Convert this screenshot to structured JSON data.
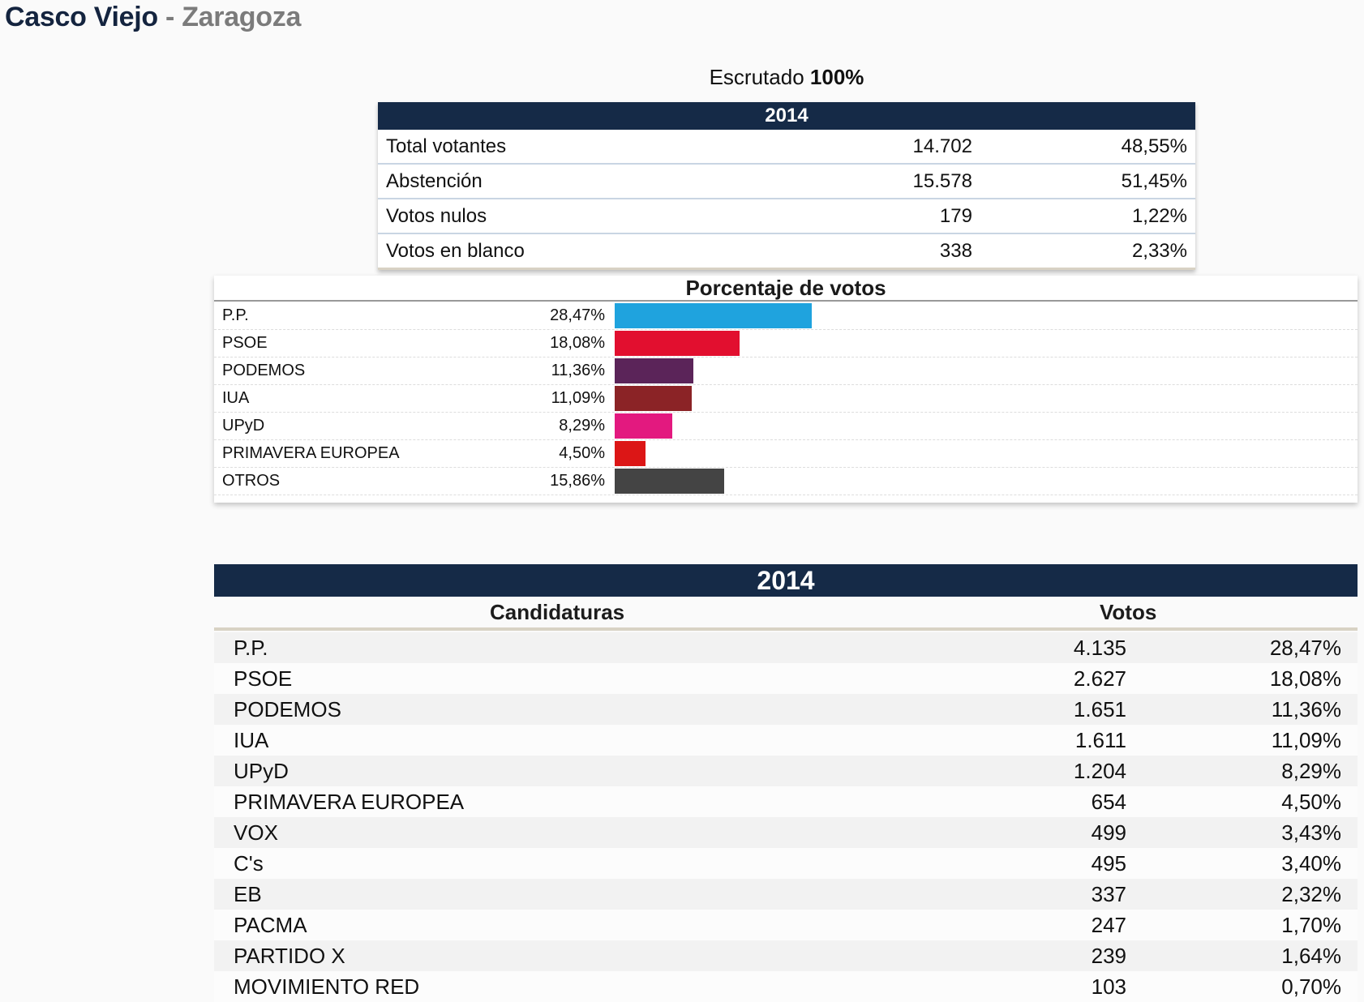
{
  "header": {
    "place": "Casco Viejo",
    "separator": "-",
    "city": "Zaragoza"
  },
  "scrutiny": {
    "label": "Escrutado",
    "value": "100%"
  },
  "summary": {
    "year": "2014",
    "rows": [
      {
        "label": "Total votantes",
        "value": "14.702",
        "pct": "48,55%"
      },
      {
        "label": "Abstención",
        "value": "15.578",
        "pct": "51,45%"
      },
      {
        "label": "Votos nulos",
        "value": "179",
        "pct": "1,22%"
      },
      {
        "label": "Votos en blanco",
        "value": "338",
        "pct": "2,33%"
      }
    ]
  },
  "chart_data": {
    "type": "bar",
    "orientation": "horizontal",
    "title": "Porcentaje de votos",
    "categories": [
      "P.P.",
      "PSOE",
      "PODEMOS",
      "IUA",
      "UPyD",
      "PRIMAVERA EUROPEA",
      "OTROS"
    ],
    "values": [
      28.47,
      18.08,
      11.36,
      11.09,
      8.29,
      4.5,
      15.86
    ],
    "labels": [
      "28,47%",
      "18,08%",
      "11,36%",
      "11,09%",
      "8,29%",
      "4,50%",
      "15,86%"
    ],
    "colors": [
      "#1fa3de",
      "#e20f2f",
      "#5b2459",
      "#8b2326",
      "#e3197f",
      "#dc1616",
      "#444444"
    ],
    "xlabel": "",
    "ylabel": "",
    "grid": false
  },
  "results": {
    "year": "2014",
    "col_candidates": "Candidaturas",
    "col_votes": "Votos",
    "rows": [
      {
        "name": "P.P.",
        "votes": "4.135",
        "pct": "28,47%"
      },
      {
        "name": "PSOE",
        "votes": "2.627",
        "pct": "18,08%"
      },
      {
        "name": "PODEMOS",
        "votes": "1.651",
        "pct": "11,36%"
      },
      {
        "name": "IUA",
        "votes": "1.611",
        "pct": "11,09%"
      },
      {
        "name": "UPyD",
        "votes": "1.204",
        "pct": "8,29%"
      },
      {
        "name": "PRIMAVERA EUROPEA",
        "votes": "654",
        "pct": "4,50%"
      },
      {
        "name": "VOX",
        "votes": "499",
        "pct": "3,43%"
      },
      {
        "name": "C's",
        "votes": "495",
        "pct": "3,40%"
      },
      {
        "name": "EB",
        "votes": "337",
        "pct": "2,32%"
      },
      {
        "name": "PACMA",
        "votes": "247",
        "pct": "1,70%"
      },
      {
        "name": "PARTIDO X",
        "votes": "239",
        "pct": "1,64%"
      },
      {
        "name": "MOVIMIENTO RED",
        "votes": "103",
        "pct": "0,70%"
      }
    ]
  }
}
